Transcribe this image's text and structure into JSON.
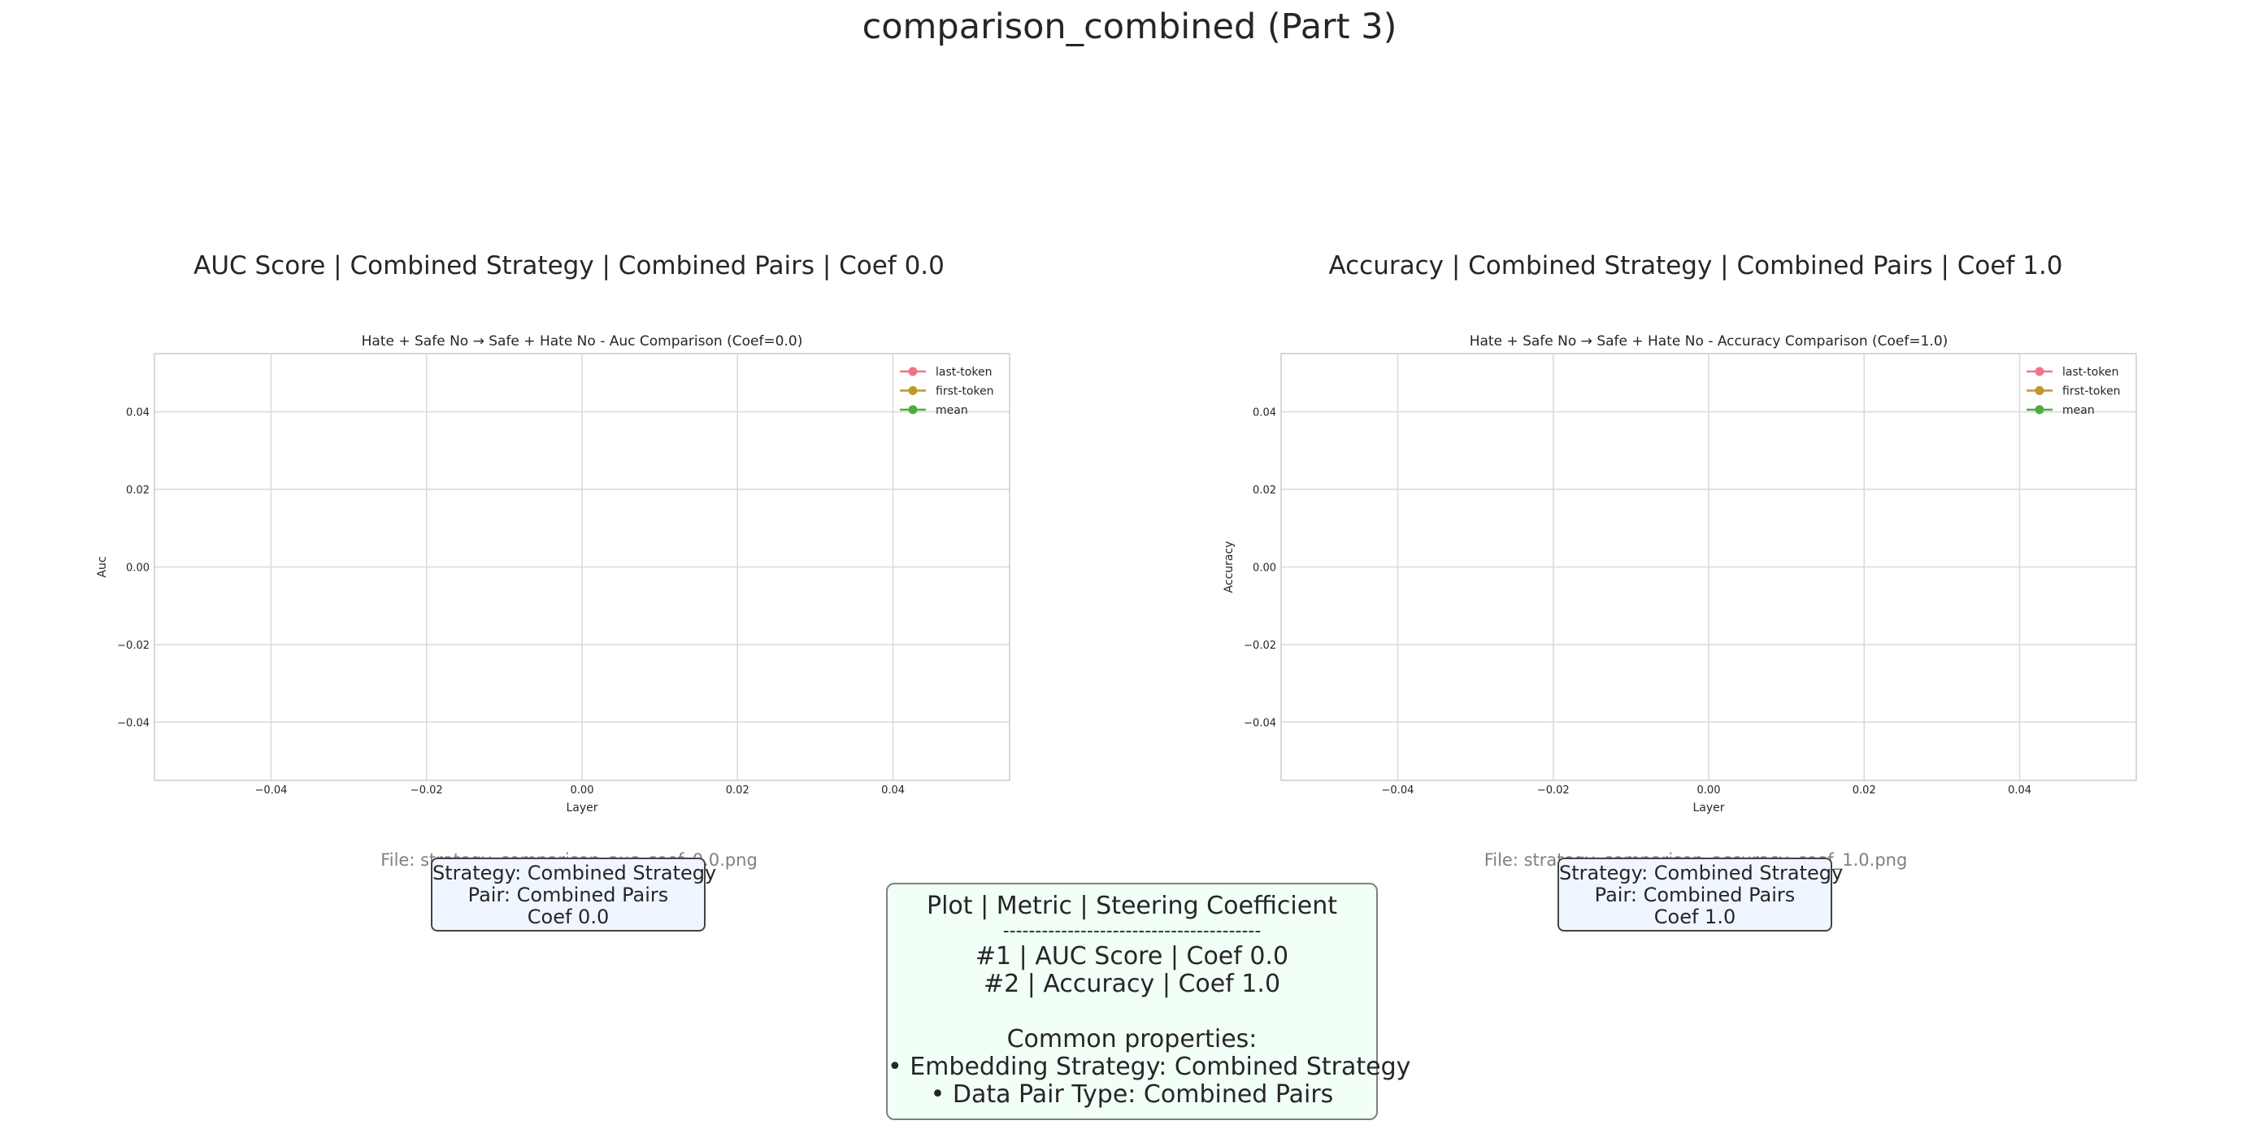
{
  "figure": {
    "title": "comparison_combined (Part 3)",
    "panels": [
      {
        "panel_title": "AUC Score | Combined Strategy | Combined Pairs | Coef 0.0",
        "file_label": "File: strategy_comparison_auc_coef_0.0.png",
        "info": [
          "Strategy: Combined Strategy",
          "Pair: Combined Pairs",
          "Coef 0.0"
        ]
      },
      {
        "panel_title": "Accuracy | Combined Strategy | Combined Pairs | Coef 1.0",
        "file_label": "File: strategy_comparison_accuracy_coef_1.0.png",
        "info": [
          "Strategy: Combined Strategy",
          "Pair: Combined Pairs",
          "Coef 1.0"
        ]
      }
    ],
    "summary": {
      "header": "Plot | Metric | Steering Coefficient",
      "divider": "----------------------------------------",
      "rows": [
        "#1 | AUC Score | Coef 0.0",
        "#2 | Accuracy | Coef 1.0"
      ],
      "common_title": "Common properties:",
      "common": [
        "• Embedding Strategy: Combined Strategy",
        "• Data Pair Type: Combined Pairs"
      ]
    }
  },
  "chart_data": [
    {
      "type": "line",
      "title": "Hate + Safe No → Safe + Hate No - Auc Comparison (Coef=0.0)",
      "xlabel": "Layer",
      "ylabel": "Auc",
      "xlim": [
        -0.055,
        0.055
      ],
      "ylim": [
        -0.055,
        0.055
      ],
      "xticks": [
        -0.04,
        -0.02,
        0.0,
        0.02,
        0.04
      ],
      "yticks": [
        -0.04,
        -0.02,
        0.0,
        0.02,
        0.04
      ],
      "xtick_labels": [
        "−0.04",
        "−0.02",
        "0.00",
        "0.02",
        "0.04"
      ],
      "ytick_labels": [
        "−0.04",
        "−0.02",
        "0.00",
        "0.02",
        "0.04"
      ],
      "grid": true,
      "legend_position": "top-right",
      "series": [
        {
          "name": "last-token",
          "color": "#f2728a",
          "x": [],
          "values": []
        },
        {
          "name": "first-token",
          "color": "#c0962d",
          "x": [],
          "values": []
        },
        {
          "name": "mean",
          "color": "#4fad3c",
          "x": [],
          "values": []
        }
      ]
    },
    {
      "type": "line",
      "title": "Hate + Safe No → Safe + Hate No - Accuracy Comparison (Coef=1.0)",
      "xlabel": "Layer",
      "ylabel": "Accuracy",
      "xlim": [
        -0.055,
        0.055
      ],
      "ylim": [
        -0.055,
        0.055
      ],
      "xticks": [
        -0.04,
        -0.02,
        0.0,
        0.02,
        0.04
      ],
      "yticks": [
        -0.04,
        -0.02,
        0.0,
        0.02,
        0.04
      ],
      "xtick_labels": [
        "−0.04",
        "−0.02",
        "0.00",
        "0.02",
        "0.04"
      ],
      "ytick_labels": [
        "−0.04",
        "−0.02",
        "0.00",
        "0.02",
        "0.04"
      ],
      "grid": true,
      "legend_position": "top-right",
      "series": [
        {
          "name": "last-token",
          "color": "#f2728a",
          "x": [],
          "values": []
        },
        {
          "name": "first-token",
          "color": "#c0962d",
          "x": [],
          "values": []
        },
        {
          "name": "mean",
          "color": "#4fad3c",
          "x": [],
          "values": []
        }
      ]
    }
  ]
}
